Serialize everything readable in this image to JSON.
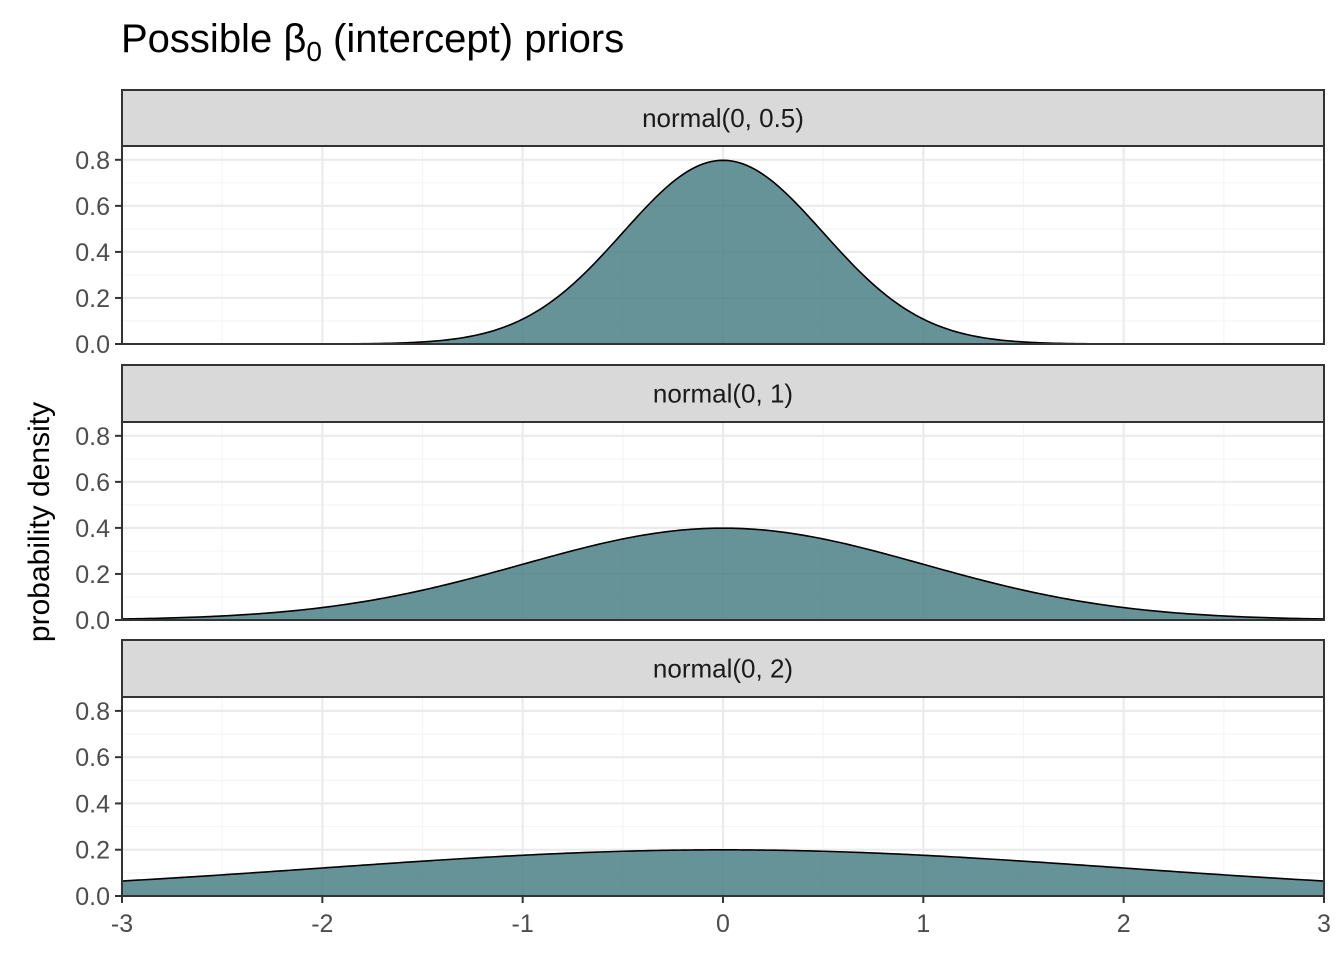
{
  "title": {
    "prefix": "Possible ",
    "symbol": "β",
    "subscript": "0",
    "suffix": " (intercept) priors"
  },
  "colors": {
    "fill": "#4a8086",
    "fill_opacity": 0.85,
    "outline": "#000000",
    "strip_bg": "#d9d9d9",
    "panel_border": "#333333",
    "grid_major": "#ebebeb",
    "grid_minor": "#f5f5f5"
  },
  "chart_data": {
    "type": "area",
    "title": "Possible β0 (intercept) priors",
    "xlabel": "",
    "ylabel": "probability density",
    "xlim": [
      -3,
      3
    ],
    "ylim": [
      0,
      0.8
    ],
    "x_ticks": [
      "-3",
      "-2",
      "-1",
      "0",
      "1",
      "2",
      "3"
    ],
    "y_ticks": [
      "0.0",
      "0.2",
      "0.4",
      "0.6",
      "0.8"
    ],
    "grid": true,
    "facets": [
      {
        "label": "normal(0, 0.5)",
        "distribution": "normal",
        "mean": 0,
        "sd": 0.5,
        "peak_density": 0.798
      },
      {
        "label": "normal(0, 1)",
        "distribution": "normal",
        "mean": 0,
        "sd": 1,
        "peak_density": 0.399
      },
      {
        "label": "normal(0, 2)",
        "distribution": "normal",
        "mean": 0,
        "sd": 2,
        "peak_density": 0.199
      }
    ]
  }
}
